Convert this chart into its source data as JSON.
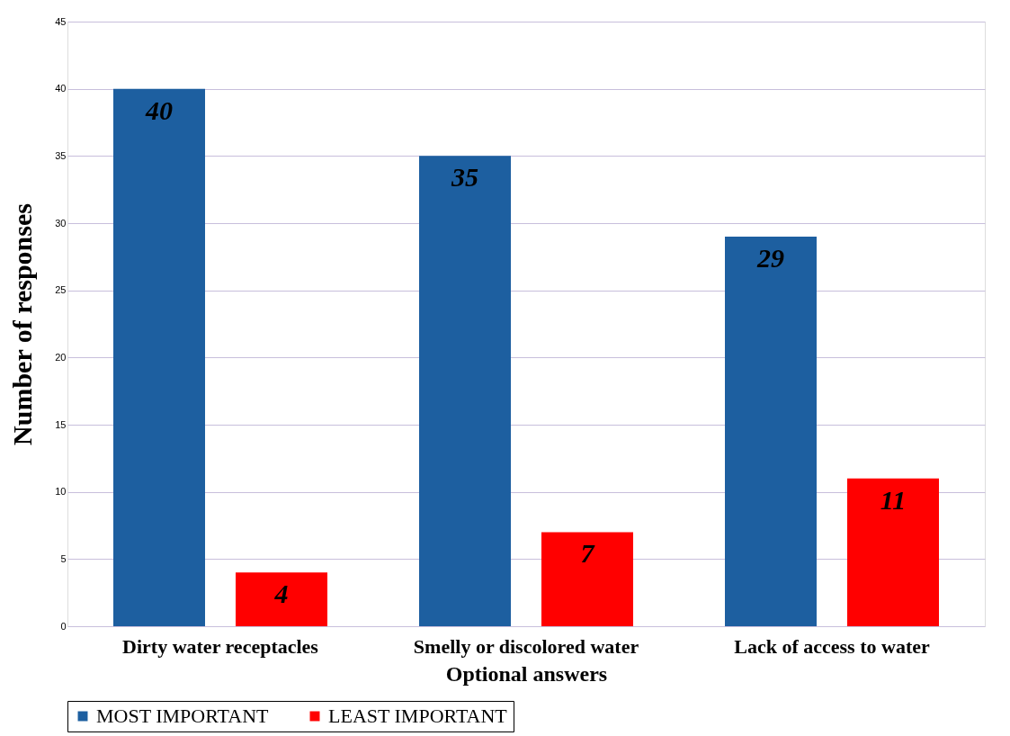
{
  "chart_data": {
    "type": "bar",
    "xlabel": "Optional answers",
    "ylabel": "Number of responses",
    "categories": [
      "Dirty water receptacles",
      "Smelly or discolored water",
      "Lack of access to water"
    ],
    "series": [
      {
        "name": "MOST IMPORTANT",
        "color": "#1d5fa0",
        "values": [
          40,
          35,
          29
        ]
      },
      {
        "name": "LEAST IMPORTANT",
        "color": "#ff0000",
        "values": [
          4,
          7,
          11
        ]
      }
    ],
    "ylim": [
      0,
      45
    ],
    "yticks": [
      0,
      5,
      10,
      15,
      20,
      25,
      30,
      35,
      40,
      45
    ],
    "grid": "y",
    "legend": "bottom",
    "data_labels": true
  }
}
